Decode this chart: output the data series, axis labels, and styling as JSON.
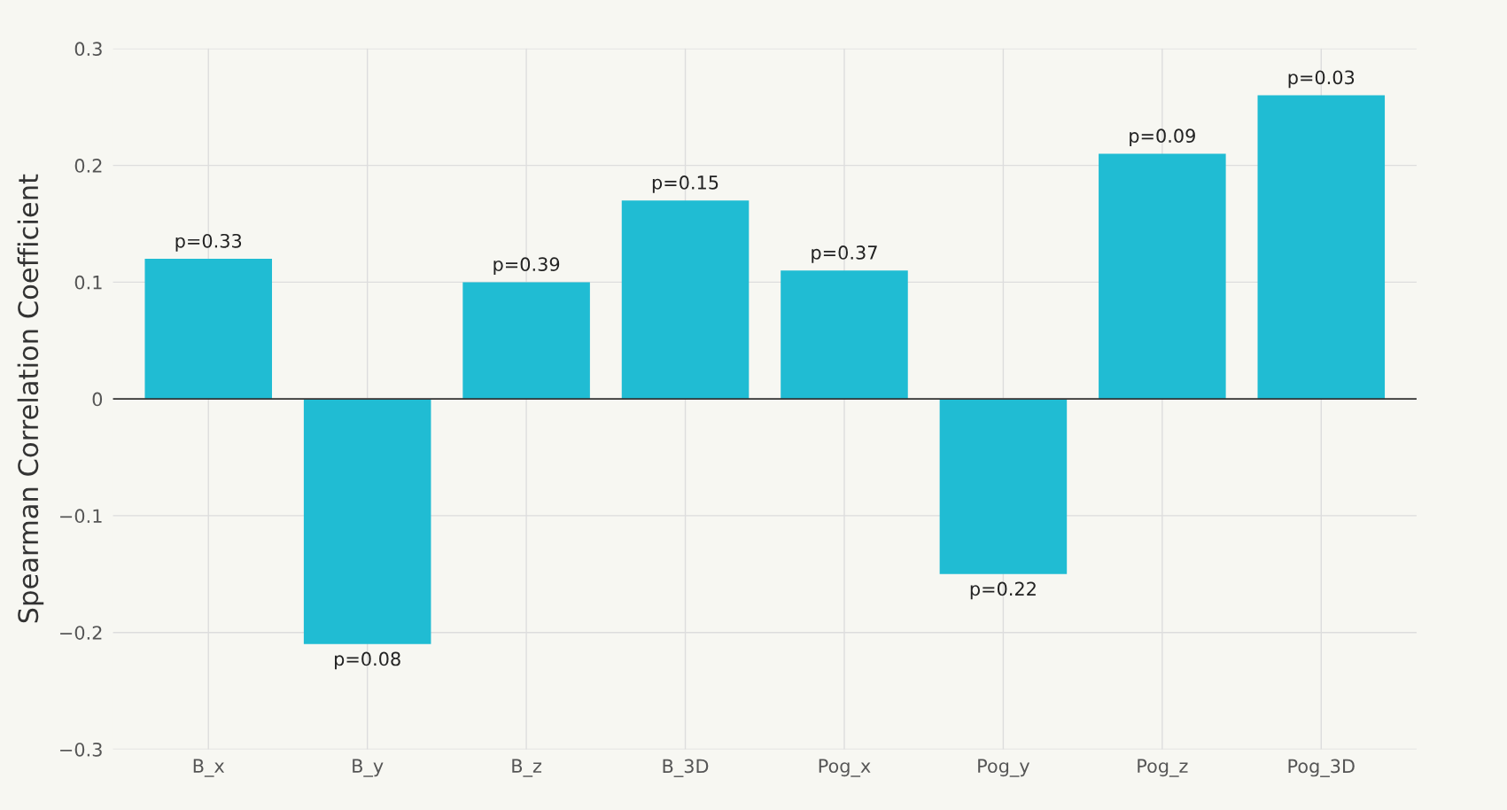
{
  "chart_data": {
    "type": "bar",
    "ylabel": "Spearman Correlation Coefficient",
    "categories": [
      "B_x",
      "B_y",
      "B_z",
      "B_3D",
      "Pog_x",
      "Pog_y",
      "Pog_z",
      "Pog_3D"
    ],
    "values": [
      0.12,
      -0.21,
      0.1,
      0.17,
      0.11,
      -0.15,
      0.21,
      0.26
    ],
    "annotations": [
      {
        "text": "p=0.33",
        "x": "B_x",
        "y": 0.12
      },
      {
        "text": "p=0.08",
        "x": "B_y",
        "y": -0.21
      },
      {
        "text": "p=0.39",
        "x": "B_z",
        "y": 0.1
      },
      {
        "text": "p=0.15",
        "x": "B_3D",
        "y": 0.17
      },
      {
        "text": "p=0.37",
        "x": "Pog_x",
        "y": 0.11
      },
      {
        "text": "p=0.22",
        "x": "Pog_y",
        "y": -0.15
      },
      {
        "text": "p=0.09",
        "x": "Pog_z",
        "y": 0.21
      },
      {
        "text": "p=0.03",
        "x": "Pog_3D",
        "y": 0.26
      }
    ],
    "color": "#20bcd3",
    "ylim": [
      -0.3,
      0.3
    ],
    "yticks": [
      {
        "value": -0.3,
        "label": "−0.3"
      },
      {
        "value": -0.2,
        "label": "−0.2"
      },
      {
        "value": -0.1,
        "label": "−0.1"
      },
      0,
      0.1,
      0.2,
      0.3
    ],
    "ref_lines": [
      {
        "axis": "y",
        "value": 0,
        "color": "#333333"
      }
    ],
    "grid": true,
    "legend": false
  }
}
